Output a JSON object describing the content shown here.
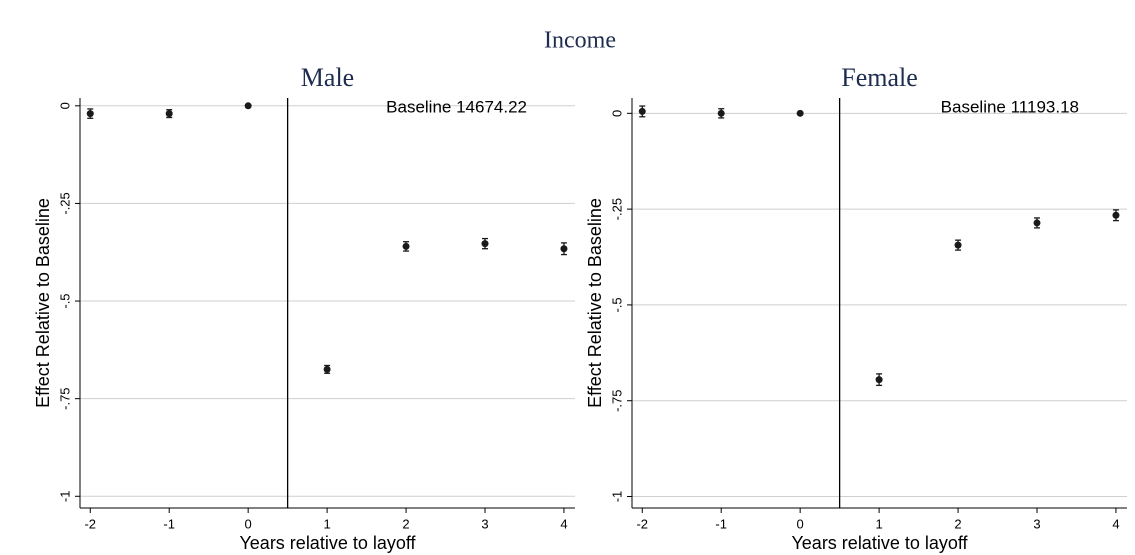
{
  "title": "Income",
  "chart_data": [
    {
      "type": "scatter",
      "title": "Male",
      "annotation": "Baseline 14674.22",
      "x_label": "Years relative to layoff",
      "y_label": "Effect Relative to Baseline",
      "x": [
        -2,
        -1,
        0,
        1,
        2,
        3,
        4
      ],
      "values": [
        -0.02,
        -0.02,
        0,
        -0.675,
        -0.36,
        -0.353,
        -0.366
      ],
      "errors": [
        0.012,
        0.01,
        0.003,
        0.01,
        0.012,
        0.013,
        0.015
      ],
      "color": "#1a1a1a",
      "vline": 0.5,
      "xlim": [
        -2.13,
        4.14
      ],
      "ylim": [
        -1.03,
        0.02
      ],
      "xticks": [
        -2,
        -1,
        0,
        1,
        2,
        3,
        4
      ],
      "yticks": [
        {
          "value": -1,
          "label": "-1"
        },
        {
          "value": -0.75,
          "label": "-.75"
        },
        {
          "value": -0.5,
          "label": "-.5"
        },
        {
          "value": -0.25,
          "label": "-.25"
        },
        0
      ],
      "grid": true
    },
    {
      "type": "scatter",
      "title": "Female",
      "annotation": "Baseline 11193.18",
      "x_label": "Years relative to layoff",
      "y_label": "Effect Relative to Baseline",
      "x": [
        -2,
        -1,
        0,
        1,
        2,
        3,
        4
      ],
      "values": [
        0.005,
        0,
        0,
        -0.695,
        -0.344,
        -0.286,
        -0.266
      ],
      "errors": [
        0.014,
        0.012,
        0.003,
        0.015,
        0.013,
        0.013,
        0.014
      ],
      "color": "#1a1a1a",
      "vline": 0.5,
      "xlim": [
        -2.13,
        4.14
      ],
      "ylim": [
        -1.03,
        0.04
      ],
      "xticks": [
        -2,
        -1,
        0,
        1,
        2,
        3,
        4
      ],
      "yticks": [
        {
          "value": -1,
          "label": "-1"
        },
        {
          "value": -0.75,
          "label": "-.75"
        },
        {
          "value": -0.5,
          "label": "-.5"
        },
        {
          "value": -0.25,
          "label": "-.25"
        },
        0
      ],
      "grid": true
    }
  ]
}
